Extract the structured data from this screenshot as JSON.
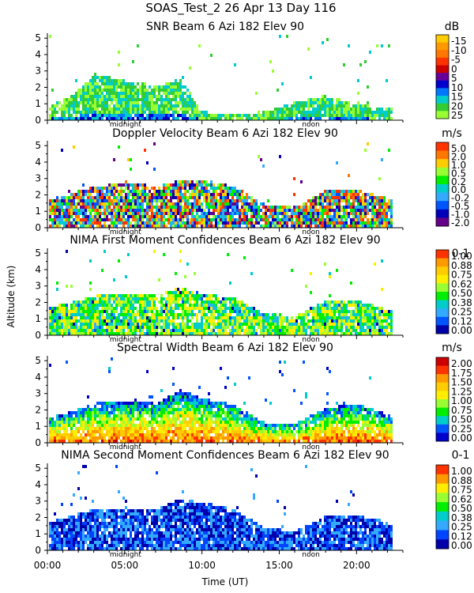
{
  "header": {
    "title": "SOAS_Test_2   26 Apr 13 Day 116"
  },
  "colors": {
    "snr": [
      "#99ff33",
      "#33cc33",
      "#00cccc",
      "#0077ff",
      "#0000cc",
      "#660099",
      "#cc0000",
      "#ff3300",
      "#ff7700",
      "#ff9900",
      "#ffcc00"
    ],
    "vel": [
      "#ff3300",
      "#ff7700",
      "#ffcc00",
      "#99ff33",
      "#00ee00",
      "#00cccc",
      "#33aaff",
      "#0055ff",
      "#0000bb",
      "#660088"
    ],
    "nima1": [
      "#0000aa",
      "#0055ff",
      "#33aaff",
      "#00cccc",
      "#00ee00",
      "#99ff33",
      "#ffee00",
      "#ffcc00",
      "#ff9900",
      "#ff3300"
    ],
    "width": [
      "#0000cc",
      "#0055ff",
      "#00cccc",
      "#00ee00",
      "#99ff33",
      "#ffee00",
      "#ffcc00",
      "#ff9900",
      "#ff3300",
      "#cc0000"
    ],
    "nima2": [
      "#0000aa",
      "#0044ff",
      "#33aaff",
      "#00cccc",
      "#00ee00",
      "#99ff33",
      "#ffee00",
      "#ff9900",
      "#ff3300"
    ]
  },
  "chart_data": [
    {
      "type": "heatmap",
      "title": "SNR Beam 6 Azi 182 Elev 90",
      "unit": "dB",
      "ylabel": "Altitude (km)",
      "ylim": [
        0,
        5.3
      ],
      "yticks": [
        "0",
        "1",
        "2",
        "3",
        "4",
        "5"
      ],
      "colorbar_labels": [
        "-15",
        "-10",
        "-5",
        "0",
        "5",
        "10",
        "15",
        "20",
        "25"
      ],
      "annotations": [
        "midnight",
        "noon"
      ],
      "profile": {
        "times_h": [
          0,
          1.5,
          3,
          5,
          7,
          8.5,
          10,
          12,
          14,
          16,
          18,
          20,
          22.2
        ],
        "tops_km": [
          0.9,
          1.6,
          2.9,
          2.5,
          2.2,
          2.6,
          0.6,
          0.5,
          0.6,
          1.2,
          1.6,
          1.0,
          0.9
        ]
      }
    },
    {
      "type": "heatmap",
      "title": "Doppler Velocity Beam 6 Azi 182 Elev 90",
      "unit": "m/s",
      "ylabel": "Altitude (km)",
      "ylim": [
        0,
        5.3
      ],
      "yticks": [
        "0",
        "1",
        "2",
        "3",
        "4",
        "5"
      ],
      "colorbar_labels": [
        "5.0",
        "2.0",
        "1.0",
        "0.5",
        "0.2",
        "0.0",
        "-0.2",
        "-0.5",
        "-1.0",
        "-2.0"
      ],
      "annotations": [
        "midnight",
        "noon"
      ],
      "profile": {
        "times_h": [
          0,
          1.5,
          3,
          5,
          7,
          8.5,
          10,
          12,
          14,
          16,
          18,
          20,
          22.2
        ],
        "tops_km": [
          1.8,
          2.2,
          2.6,
          2.9,
          2.6,
          3.0,
          3.0,
          2.6,
          1.5,
          1.4,
          2.4,
          2.4,
          1.8
        ]
      }
    },
    {
      "type": "heatmap",
      "title": "NIMA First Moment Confidences Beam 6 Azi 182 Elev 90",
      "unit": "0-1",
      "ylabel": "Altitude (km)",
      "ylim": [
        0,
        5.3
      ],
      "yticks": [
        "0",
        "1",
        "2",
        "3",
        "4",
        "5"
      ],
      "colorbar_labels": [
        "1.00",
        "0.88",
        "0.75",
        "0.62",
        "0.50",
        "0.38",
        "0.25",
        "0.12",
        "0.00"
      ],
      "annotations": [
        "midnight",
        "noon"
      ],
      "profile": {
        "times_h": [
          0,
          1.5,
          3,
          5,
          7,
          8.5,
          10,
          12,
          14,
          16,
          18,
          20,
          22.2
        ],
        "tops_km": [
          1.8,
          2.1,
          2.5,
          2.7,
          2.5,
          3.0,
          2.6,
          2.4,
          1.4,
          1.3,
          2.2,
          2.2,
          1.6
        ]
      }
    },
    {
      "type": "heatmap",
      "title": "Spectral Width Beam 6 Azi 182 Elev 90",
      "unit": "m/s",
      "ylabel": "Altitude (km)",
      "ylim": [
        0,
        5.3
      ],
      "yticks": [
        "0",
        "1",
        "2",
        "3",
        "4",
        "5"
      ],
      "colorbar_labels": [
        "2.00",
        "1.75",
        "1.50",
        "1.25",
        "1.00",
        "0.75",
        "0.50",
        "0.25",
        "0.00"
      ],
      "annotations": [
        "midnight",
        "noon"
      ],
      "profile": {
        "times_h": [
          0,
          1.5,
          3,
          5,
          7,
          8.5,
          10,
          12,
          14,
          16,
          18,
          20,
          22.2
        ],
        "tops_km": [
          1.6,
          2.0,
          2.5,
          2.6,
          2.5,
          3.3,
          2.8,
          2.4,
          1.3,
          1.3,
          2.2,
          2.5,
          1.7
        ]
      }
    },
    {
      "type": "heatmap",
      "title": "NIMA Second Moment Confidences Beam 6 Azi 182 Elev 90",
      "unit": "0-1",
      "xlabel": "Time (UT)",
      "xticks": [
        "00:00",
        "05:00",
        "10:00",
        "15:00",
        "20:00"
      ],
      "xlim_hours": [
        0,
        23
      ],
      "ylabel": "Altitude (km)",
      "ylim": [
        0,
        5.3
      ],
      "yticks": [
        "0",
        "1",
        "2",
        "3",
        "4",
        "5"
      ],
      "colorbar_labels": [
        "1.00",
        "0.88",
        "0.75",
        "0.62",
        "0.50",
        "0.38",
        "0.25",
        "0.12",
        "0.00"
      ],
      "annotations": [
        "midnight",
        "noon"
      ],
      "profile": {
        "times_h": [
          0,
          1.5,
          3,
          5,
          7,
          8.5,
          10,
          12,
          14,
          16,
          18,
          20,
          22.2
        ],
        "tops_km": [
          1.8,
          2.2,
          2.6,
          2.7,
          2.6,
          3.2,
          3.0,
          2.6,
          1.4,
          1.3,
          2.2,
          2.2,
          1.8
        ]
      }
    }
  ]
}
